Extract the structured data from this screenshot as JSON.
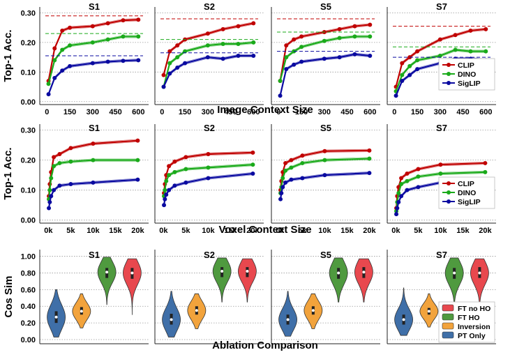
{
  "colors": {
    "clip": "#c00000",
    "dino": "#1aaa1a",
    "siglip": "#0a0aa0",
    "ft_no_ho": "#e8484e",
    "ft_ho": "#4f9a3f",
    "inversion": "#f2a33c",
    "pt_only": "#3f6fa8"
  },
  "chart_data": [
    {
      "type": "line",
      "ylabel": "Top-1 Acc.",
      "xlabel": "Image Context Size",
      "x": [
        10,
        50,
        100,
        150,
        300,
        400,
        500,
        600
      ],
      "xticks": [
        0,
        150,
        300,
        450,
        600
      ],
      "xtick_labels": [
        "0",
        "150",
        "300",
        "450",
        "600"
      ],
      "yticks": [
        0.0,
        0.1,
        0.2,
        0.3
      ],
      "ytick_labels": [
        "0.00",
        "0.10",
        "0.20",
        "0.30"
      ],
      "ylim": [
        -0.01,
        0.32
      ],
      "xlim": [
        -20,
        640
      ],
      "grid": "horizontal dotted",
      "legend": {
        "panel": 3,
        "placement": "right",
        "entries": [
          "CLIP",
          "DINO",
          "SigLIP"
        ]
      },
      "panels": [
        {
          "title": "S1",
          "series": [
            {
              "name": "CLIP",
              "values": [
                0.07,
                0.18,
                0.24,
                0.25,
                0.255,
                0.265,
                0.275,
                0.277
              ],
              "ref": 0.29
            },
            {
              "name": "DINO",
              "values": [
                0.06,
                0.14,
                0.175,
                0.19,
                0.2,
                0.21,
                0.22,
                0.22
              ],
              "ref": 0.23
            },
            {
              "name": "SigLIP",
              "values": [
                0.025,
                0.08,
                0.105,
                0.12,
                0.13,
                0.135,
                0.138,
                0.14
              ],
              "ref": 0.155
            }
          ]
        },
        {
          "title": "S2",
          "series": [
            {
              "name": "CLIP",
              "values": [
                0.09,
                0.17,
                0.19,
                0.21,
                0.23,
                0.245,
                0.255,
                0.265
              ],
              "ref": 0.28
            },
            {
              "name": "DINO",
              "values": [
                0.05,
                0.13,
                0.15,
                0.17,
                0.19,
                0.195,
                0.195,
                0.2
              ],
              "ref": 0.21
            },
            {
              "name": "SigLIP",
              "values": [
                0.05,
                0.095,
                0.115,
                0.13,
                0.15,
                0.145,
                0.155,
                0.155
              ],
              "ref": 0.165
            }
          ]
        },
        {
          "title": "S5",
          "series": [
            {
              "name": "CLIP",
              "values": [
                0.07,
                0.19,
                0.21,
                0.22,
                0.235,
                0.245,
                0.255,
                0.26
              ],
              "ref": 0.28
            },
            {
              "name": "DINO",
              "values": [
                0.07,
                0.15,
                0.17,
                0.185,
                0.205,
                0.215,
                0.22,
                0.22
              ],
              "ref": 0.235
            },
            {
              "name": "SigLIP",
              "values": [
                0.02,
                0.11,
                0.125,
                0.135,
                0.145,
                0.15,
                0.16,
                0.155
              ],
              "ref": 0.17
            }
          ]
        },
        {
          "title": "S7",
          "series": [
            {
              "name": "CLIP",
              "values": [
                0.05,
                0.13,
                0.15,
                0.17,
                0.21,
                0.225,
                0.24,
                0.245
              ],
              "ref": 0.255
            },
            {
              "name": "DINO",
              "values": [
                0.035,
                0.09,
                0.12,
                0.14,
                0.155,
                0.175,
                0.17,
                0.17
              ],
              "ref": 0.185
            },
            {
              "name": "SigLIP",
              "values": [
                0.02,
                0.07,
                0.09,
                0.11,
                0.13,
                0.145,
                0.145,
                0.14
              ],
              "ref": 0.15
            }
          ]
        }
      ]
    },
    {
      "type": "line",
      "ylabel": "Top-1 Acc.",
      "xlabel": "Voxel Context Size",
      "x": [
        100,
        300,
        600,
        1200,
        2500,
        5000,
        10000,
        20000
      ],
      "xticks": [
        0,
        5000,
        10000,
        15000,
        20000
      ],
      "xtick_labels": [
        "0k",
        "5k",
        "10k",
        "15k",
        "20k"
      ],
      "yticks": [
        0.0,
        0.1,
        0.2,
        0.3
      ],
      "ytick_labels": [
        "0.00",
        "0.10",
        "0.20",
        "0.30"
      ],
      "ylim": [
        -0.01,
        0.32
      ],
      "xlim": [
        -1000,
        21500
      ],
      "grid": "horizontal dotted",
      "legend": {
        "panel": 3,
        "placement": "right",
        "entries": [
          "CLIP",
          "DINO",
          "SigLIP"
        ]
      },
      "panels": [
        {
          "title": "S1",
          "series": [
            {
              "name": "CLIP",
              "values": [
                0.08,
                0.12,
                0.16,
                0.21,
                0.22,
                0.24,
                0.255,
                0.265
              ]
            },
            {
              "name": "DINO",
              "values": [
                0.07,
                0.1,
                0.14,
                0.18,
                0.19,
                0.195,
                0.2,
                0.2
              ]
            },
            {
              "name": "SigLIP",
              "values": [
                0.04,
                0.06,
                0.08,
                0.1,
                0.115,
                0.12,
                0.125,
                0.135
              ]
            }
          ]
        },
        {
          "title": "S2",
          "series": [
            {
              "name": "CLIP",
              "values": [
                0.09,
                0.12,
                0.15,
                0.18,
                0.195,
                0.21,
                0.22,
                0.225
              ]
            },
            {
              "name": "DINO",
              "values": [
                0.08,
                0.1,
                0.13,
                0.15,
                0.16,
                0.17,
                0.175,
                0.185
              ]
            },
            {
              "name": "SigLIP",
              "values": [
                0.05,
                0.07,
                0.085,
                0.1,
                0.115,
                0.125,
                0.14,
                0.155
              ]
            }
          ]
        },
        {
          "title": "S5",
          "series": [
            {
              "name": "CLIP",
              "values": [
                0.1,
                0.13,
                0.16,
                0.19,
                0.2,
                0.215,
                0.23,
                0.232
              ]
            },
            {
              "name": "DINO",
              "values": [
                0.09,
                0.11,
                0.14,
                0.165,
                0.175,
                0.19,
                0.2,
                0.205
              ]
            },
            {
              "name": "SigLIP",
              "values": [
                0.07,
                0.09,
                0.11,
                0.125,
                0.135,
                0.14,
                0.15,
                0.157
              ]
            }
          ]
        },
        {
          "title": "S7",
          "series": [
            {
              "name": "CLIP",
              "values": [
                0.04,
                0.08,
                0.11,
                0.14,
                0.155,
                0.17,
                0.185,
                0.19
              ]
            },
            {
              "name": "DINO",
              "values": [
                0.03,
                0.06,
                0.09,
                0.12,
                0.13,
                0.145,
                0.155,
                0.16
              ]
            },
            {
              "name": "SigLIP",
              "values": [
                0.02,
                0.04,
                0.06,
                0.08,
                0.1,
                0.11,
                0.125,
                0.135
              ]
            }
          ]
        }
      ]
    },
    {
      "type": "violin",
      "ylabel": "Cos Sim",
      "xlabel": "Ablation Comparison",
      "categories": [
        "PT Only",
        "Inversion",
        "FT HO",
        "FT no HO"
      ],
      "yticks": [
        0.0,
        0.2,
        0.4,
        0.6,
        0.8,
        1.0
      ],
      "ytick_labels": [
        "0.00",
        "0.20",
        "0.40",
        "0.60",
        "0.80",
        "1.00"
      ],
      "ylim": [
        -0.05,
        1.08
      ],
      "grid": "horizontal dotted",
      "legend": {
        "panel": 3,
        "placement": "right",
        "entries": [
          "FT no HO",
          "FT HO",
          "Inversion",
          "PT Only"
        ]
      },
      "panels": [
        {
          "title": "S1",
          "violins": [
            {
              "name": "PT Only",
              "min": 0.03,
              "max": 0.6,
              "median": 0.27,
              "q1": 0.2,
              "q3": 0.34
            },
            {
              "name": "Inversion",
              "min": 0.14,
              "max": 0.55,
              "median": 0.34,
              "q1": 0.3,
              "q3": 0.39
            },
            {
              "name": "FT HO",
              "min": 0.42,
              "max": 0.99,
              "median": 0.81,
              "q1": 0.74,
              "q3": 0.86
            },
            {
              "name": "FT no HO",
              "min": 0.3,
              "max": 0.97,
              "median": 0.8,
              "q1": 0.73,
              "q3": 0.86
            }
          ]
        },
        {
          "title": "S2",
          "violins": [
            {
              "name": "PT Only",
              "min": 0.03,
              "max": 0.58,
              "median": 0.24,
              "q1": 0.18,
              "q3": 0.31
            },
            {
              "name": "Inversion",
              "min": 0.13,
              "max": 0.55,
              "median": 0.35,
              "q1": 0.3,
              "q3": 0.4
            },
            {
              "name": "FT HO",
              "min": 0.45,
              "max": 0.98,
              "median": 0.82,
              "q1": 0.75,
              "q3": 0.87
            },
            {
              "name": "FT no HO",
              "min": 0.45,
              "max": 0.97,
              "median": 0.82,
              "q1": 0.75,
              "q3": 0.87
            }
          ]
        },
        {
          "title": "S5",
          "violins": [
            {
              "name": "PT Only",
              "min": 0.04,
              "max": 0.58,
              "median": 0.24,
              "q1": 0.18,
              "q3": 0.3
            },
            {
              "name": "Inversion",
              "min": 0.13,
              "max": 0.55,
              "median": 0.35,
              "q1": 0.3,
              "q3": 0.4
            },
            {
              "name": "FT HO",
              "min": 0.45,
              "max": 0.98,
              "median": 0.8,
              "q1": 0.73,
              "q3": 0.86
            },
            {
              "name": "FT no HO",
              "min": 0.45,
              "max": 0.97,
              "median": 0.81,
              "q1": 0.74,
              "q3": 0.87
            }
          ]
        },
        {
          "title": "S7",
          "violins": [
            {
              "name": "PT Only",
              "min": 0.05,
              "max": 0.62,
              "median": 0.24,
              "q1": 0.18,
              "q3": 0.3
            },
            {
              "name": "Inversion",
              "min": 0.15,
              "max": 0.55,
              "median": 0.34,
              "q1": 0.3,
              "q3": 0.38
            },
            {
              "name": "FT HO",
              "min": 0.45,
              "max": 0.98,
              "median": 0.8,
              "q1": 0.73,
              "q3": 0.86
            },
            {
              "name": "FT no HO",
              "min": 0.45,
              "max": 0.97,
              "median": 0.8,
              "q1": 0.74,
              "q3": 0.87
            }
          ]
        }
      ]
    }
  ]
}
